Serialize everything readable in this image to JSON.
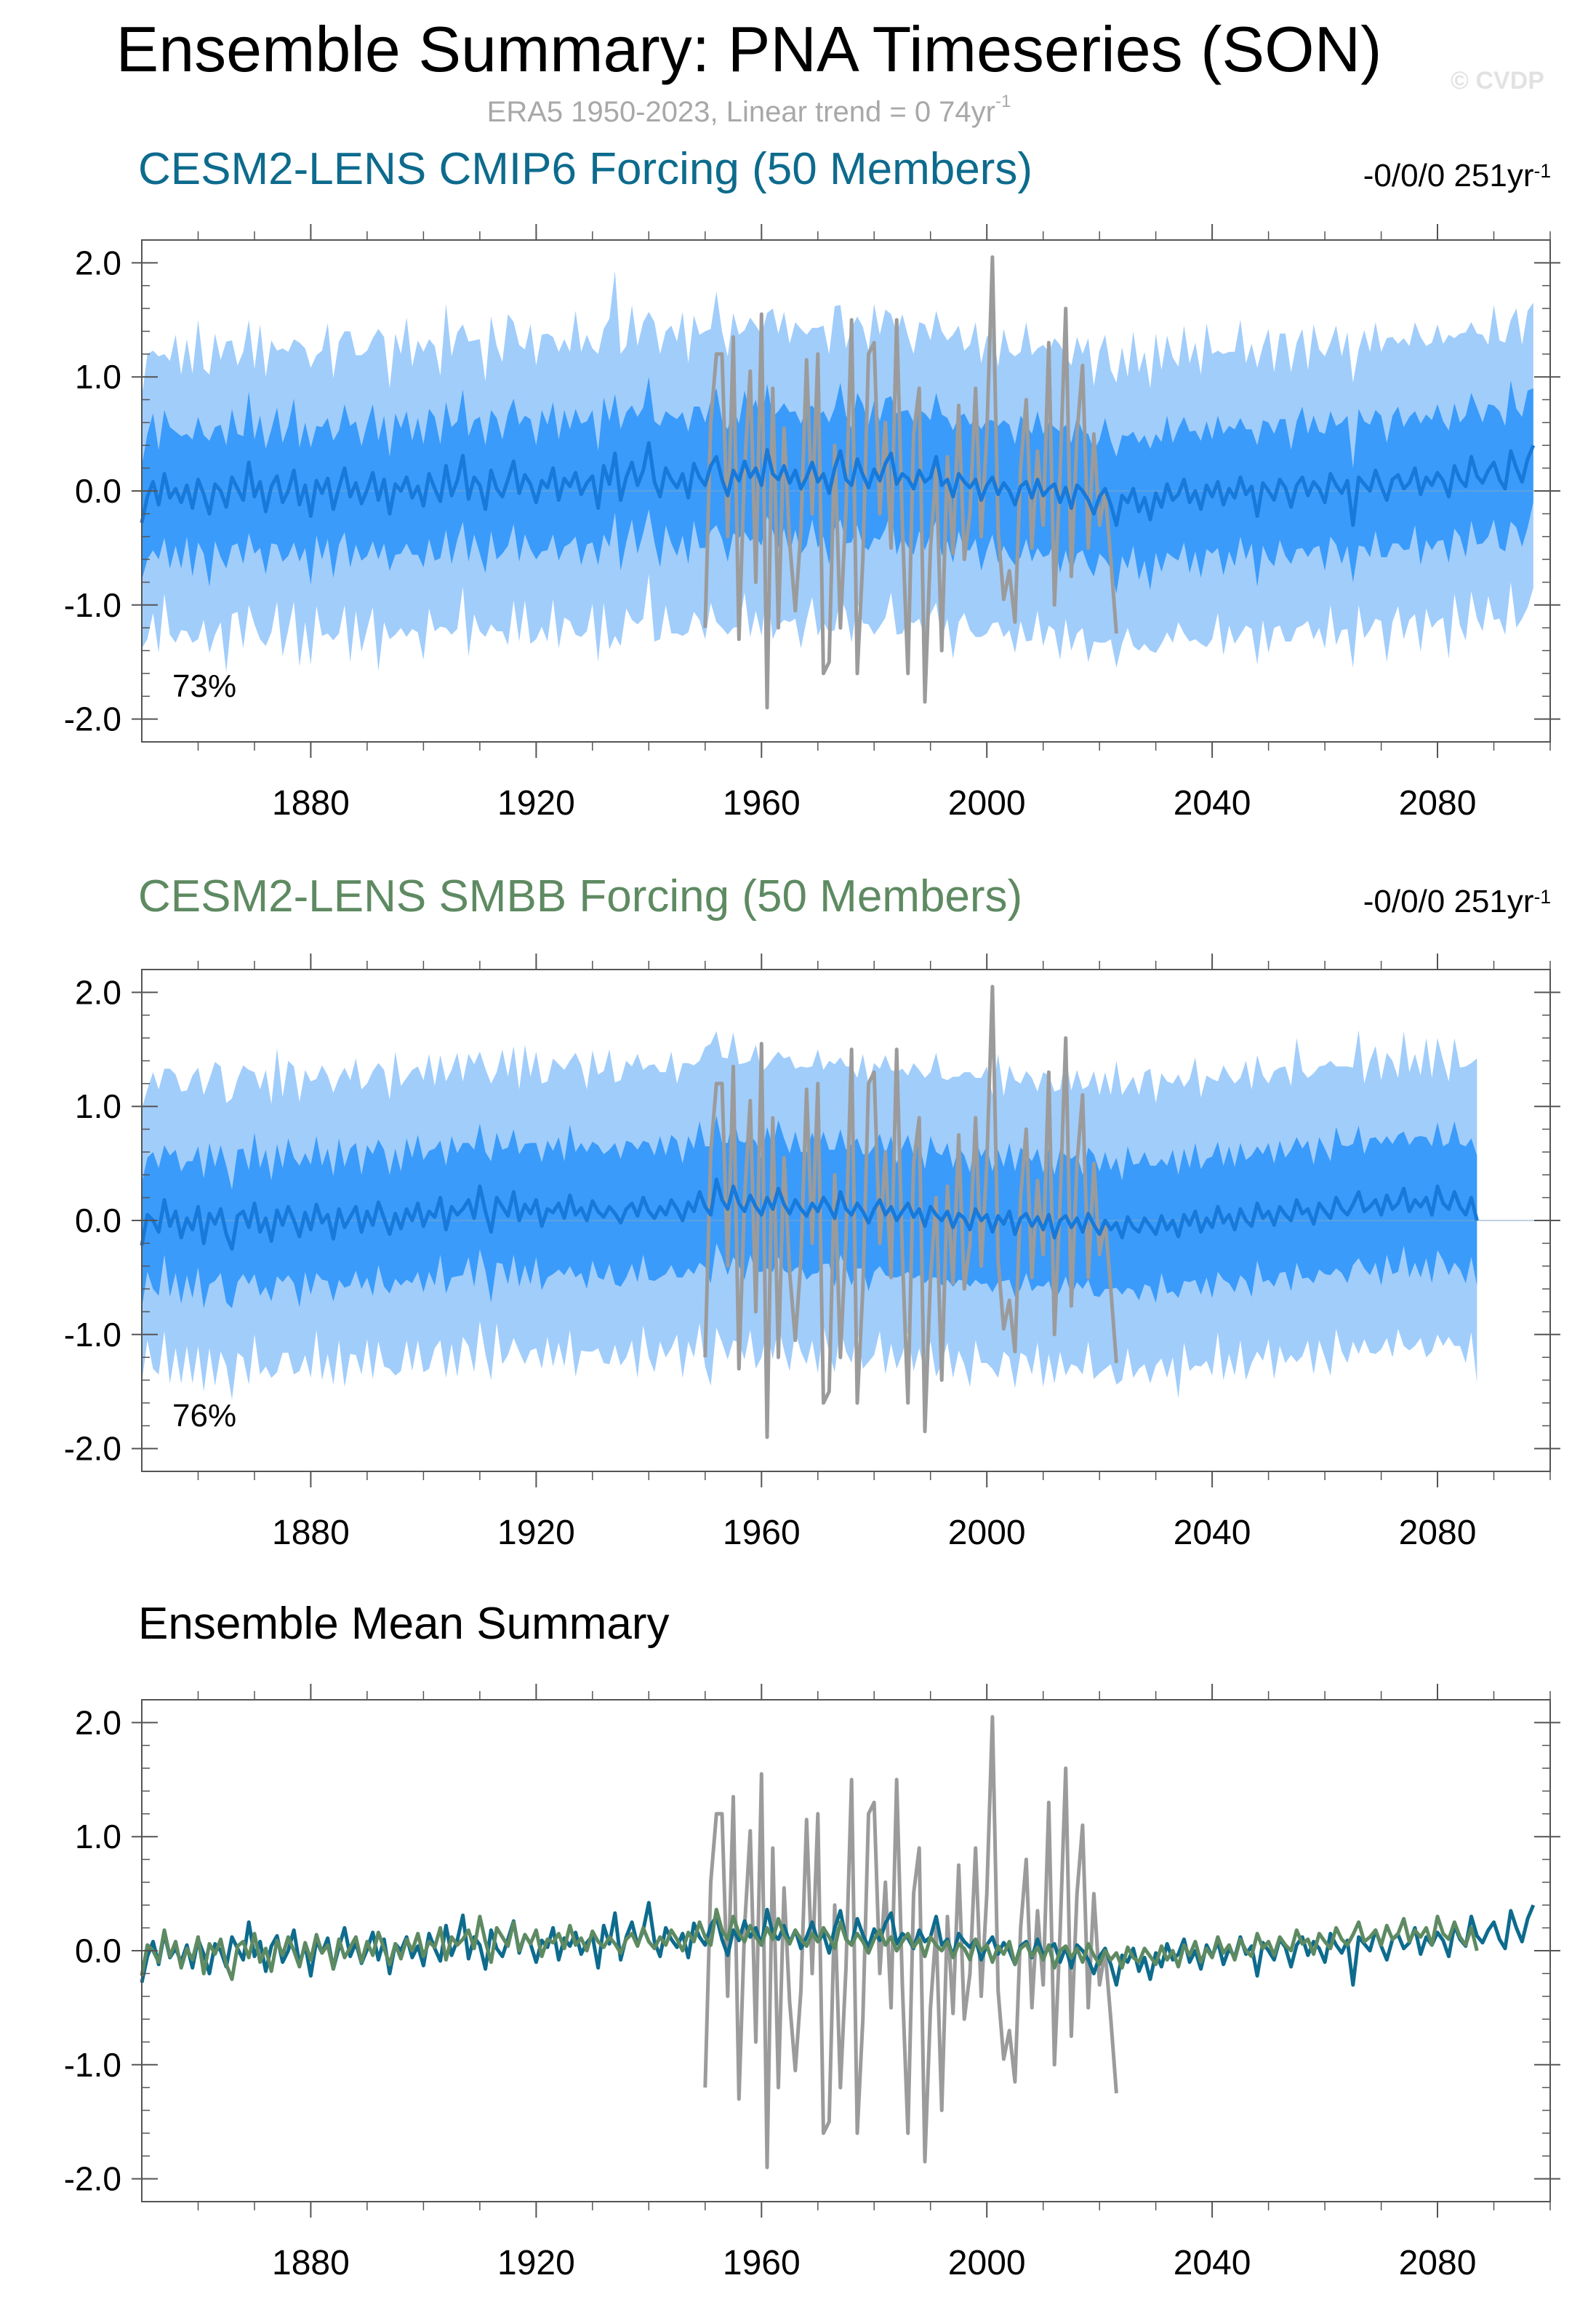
{
  "header": {
    "title": "Ensemble Summary: PNA Timeseries (SON)",
    "watermark": "© CVDP",
    "obs_label": "ERA5 1950-2023, Linear trend = 0 74yr",
    "obs_label_sup": "-1"
  },
  "colors": {
    "outer_band": "#a1cdfb",
    "inner_band": "#3a9bfa",
    "cmip6_mean": "#0d6b8d",
    "cmip6_mean_in_band": "#1779da",
    "smbb_mean": "#5e8a62",
    "smbb_mean_in_band": "#1779da",
    "obs": "#9b9b9b",
    "axis": "#555555"
  },
  "panels": [
    {
      "title": "CESM2-LENS CMIP6 Forcing (50 Members)",
      "trend": "-0/0/0 251yr",
      "trend_sup": "-1",
      "percent_label": "73%"
    },
    {
      "title": "CESM2-LENS SMBB Forcing (50 Members)",
      "trend": "-0/0/0 251yr",
      "trend_sup": "-1",
      "percent_label": "76%"
    },
    {
      "title": "Ensemble Mean Summary",
      "trend": "",
      "trend_sup": "",
      "percent_label": ""
    }
  ],
  "chart_data": {
    "type": "line",
    "x_range": [
      1850,
      2100
    ],
    "ylim": [
      -2.2,
      2.2
    ],
    "x_ticks": [
      1880,
      1920,
      1960,
      2000,
      2040,
      2080
    ],
    "y_ticks": [
      2.0,
      1.0,
      0.0,
      -1.0,
      -2.0
    ],
    "y_tick_labels": [
      "2.0",
      "1.0",
      "0.0",
      "-1.0",
      "-2.0"
    ],
    "years_start": 1850,
    "cmip6_mean": [
      -0.28,
      -0.05,
      0.08,
      -0.12,
      0.15,
      -0.06,
      0.02,
      -0.1,
      0.05,
      -0.15,
      0.1,
      -0.03,
      -0.2,
      0.06,
      0.0,
      -0.14,
      0.12,
      0.02,
      -0.08,
      0.25,
      -0.05,
      0.08,
      -0.18,
      0.04,
      0.13,
      -0.1,
      0.0,
      0.18,
      -0.12,
      0.05,
      -0.22,
      0.09,
      -0.02,
      0.11,
      -0.16,
      0.03,
      0.2,
      -0.05,
      0.07,
      -0.11,
      0.01,
      0.16,
      -0.08,
      0.1,
      -0.2,
      0.06,
      0.0,
      0.12,
      -0.06,
      0.04,
      -0.13,
      0.15,
      0.02,
      -0.09,
      0.22,
      -0.04,
      0.09,
      0.31,
      -0.07,
      0.12,
      0.05,
      -0.16,
      0.18,
      0.02,
      -0.05,
      0.1,
      0.26,
      -0.02,
      0.14,
      0.06,
      -0.1,
      0.09,
      0.03,
      0.2,
      -0.08,
      0.11,
      0.04,
      0.16,
      -0.03,
      0.07,
      0.13,
      -0.15,
      0.22,
      0.06,
      0.33,
      -0.08,
      0.12,
      0.25,
      0.05,
      0.18,
      0.42,
      0.08,
      -0.05,
      0.2,
      0.1,
      0.03,
      0.15,
      -0.06,
      0.24,
      0.12,
      0.05,
      0.22,
      0.3,
      0.1,
      -0.04,
      0.18,
      0.09,
      0.26,
      0.12,
      0.2,
      0.05,
      0.36,
      0.15,
      0.1,
      0.22,
      0.07,
      0.18,
      0.02,
      0.12,
      0.25,
      0.08,
      0.15,
      -0.02,
      0.2,
      0.35,
      0.1,
      0.05,
      0.28,
      0.14,
      0.03,
      0.19,
      0.09,
      0.24,
      0.33,
      0.06,
      0.15,
      0.11,
      0.02,
      0.18,
      0.08,
      0.12,
      0.3,
      0.05,
      0.1,
      -0.05,
      0.15,
      0.08,
      0.03,
      0.1,
      -0.08,
      0.05,
      0.12,
      -0.03,
      0.07,
      0.0,
      -0.12,
      0.04,
      0.08,
      -0.06,
      0.1,
      -0.04,
      0.02,
      0.06,
      -0.1,
      0.03,
      -0.15,
      0.05,
      0.0,
      -0.08,
      -0.2,
      -0.05,
      0.02,
      -0.12,
      -0.3,
      -0.04,
      -0.1,
      0.02,
      -0.18,
      -0.06,
      -0.25,
      -0.02,
      -0.14,
      0.06,
      -0.08,
      -0.03,
      0.1,
      -0.1,
      0.0,
      -0.16,
      0.05,
      -0.05,
      0.08,
      -0.12,
      0.02,
      -0.06,
      0.12,
      -0.03,
      0.04,
      -0.22,
      0.07,
      0.0,
      -0.08,
      0.1,
      0.03,
      -0.14,
      0.05,
      0.12,
      -0.04,
      0.08,
      0.02,
      -0.1,
      0.15,
      0.05,
      -0.02,
      0.09,
      -0.3,
      0.12,
      0.06,
      0.0,
      0.18,
      0.04,
      -0.08,
      0.1,
      0.14,
      0.02,
      0.07,
      0.2,
      -0.03,
      0.12,
      0.05,
      0.16,
      0.09,
      -0.05,
      0.22,
      0.1,
      0.04,
      0.3,
      0.13,
      0.07,
      0.18,
      0.25,
      0.1,
      0.02,
      0.35,
      0.2,
      0.08,
      0.28,
      0.4
    ],
    "smbb_mean": [
      -0.22,
      0.05,
      0.0,
      -0.1,
      0.18,
      -0.05,
      0.08,
      -0.15,
      0.02,
      -0.08,
      0.12,
      -0.2,
      0.06,
      -0.03,
      0.1,
      -0.12,
      -0.25,
      0.04,
      0.08,
      -0.06,
      0.15,
      -0.1,
      0.02,
      -0.18,
      0.09,
      -0.04,
      0.12,
      0.0,
      -0.14,
      0.07,
      -0.08,
      0.14,
      -0.02,
      0.05,
      -0.16,
      0.1,
      -0.06,
      0.03,
      0.12,
      -0.1,
      0.08,
      -0.04,
      0.16,
      0.02,
      -0.12,
      0.06,
      -0.07,
      0.1,
      0.0,
      0.15,
      -0.05,
      0.08,
      0.03,
      0.2,
      -0.08,
      0.12,
      0.05,
      0.1,
      0.18,
      0.02,
      0.3,
      0.08,
      -0.1,
      0.2,
      0.12,
      0.04,
      0.25,
      0.0,
      0.14,
      0.06,
      0.18,
      -0.05,
      0.1,
      0.07,
      0.15,
      0.02,
      0.22,
      0.05,
      0.11,
      0.0,
      0.17,
      0.08,
      0.03,
      0.12,
      0.06,
      -0.02,
      0.1,
      0.15,
      0.04,
      0.2,
      0.08,
      0.02,
      0.12,
      0.05,
      0.18,
      0.1,
      0.0,
      0.16,
      0.08,
      0.25,
      0.12,
      0.05,
      0.36,
      0.18,
      0.1,
      0.3,
      0.15,
      0.08,
      0.22,
      0.12,
      0.05,
      0.2,
      0.1,
      0.28,
      0.14,
      0.06,
      0.18,
      0.1,
      0.04,
      0.15,
      0.08,
      0.2,
      0.12,
      0.02,
      0.25,
      0.1,
      0.05,
      0.15,
      0.08,
      -0.02,
      0.1,
      0.18,
      0.05,
      0.12,
      0.0,
      0.08,
      0.15,
      0.03,
      0.1,
      -0.05,
      0.12,
      0.05,
      0.0,
      0.08,
      -0.06,
      0.06,
      0.02,
      -0.08,
      0.1,
      0.0,
      0.05,
      -0.1,
      0.04,
      -0.03,
      0.08,
      -0.12,
      0.02,
      0.06,
      -0.05,
      0.03,
      -0.08,
      0.05,
      -0.15,
      0.0,
      0.04,
      -0.06,
      0.02,
      -0.1,
      0.06,
      -0.04,
      -0.12,
      0.0,
      -0.08,
      -0.02,
      -0.15,
      0.03,
      -0.06,
      -0.1,
      0.02,
      -0.05,
      -0.12,
      0.04,
      -0.08,
      0.0,
      -0.14,
      0.05,
      -0.04,
      0.08,
      -0.1,
      0.02,
      -0.06,
      0.12,
      -0.02,
      0.05,
      -0.08,
      0.1,
      0.0,
      -0.05,
      0.15,
      0.02,
      0.08,
      -0.04,
      0.12,
      0.05,
      0.0,
      0.18,
      0.06,
      0.1,
      -0.03,
      0.15,
      0.08,
      0.02,
      0.2,
      0.1,
      0.05,
      0.14,
      0.25,
      0.08,
      0.12,
      0.18,
      0.05,
      0.22,
      0.1,
      0.15,
      0.28,
      0.08,
      0.18,
      0.12,
      0.2,
      0.05,
      0.3,
      0.15,
      0.1,
      0.25,
      0.12,
      0.05,
      0.2,
      0.0
    ],
    "cmip6_inner_half": [
      0.5,
      0.55,
      0.6,
      0.48,
      0.56,
      0.62,
      0.5,
      0.58,
      0.45,
      0.6,
      0.55,
      0.52,
      0.64,
      0.5,
      0.58,
      0.54,
      0.6,
      0.48,
      0.56,
      0.62,
      0.5,
      0.58,
      0.55,
      0.5,
      0.6,
      0.52,
      0.57,
      0.63,
      0.5,
      0.55,
      0.6,
      0.48,
      0.58,
      0.53,
      0.6,
      0.5,
      0.56,
      0.62,
      0.54,
      0.5,
      0.58,
      0.6,
      0.52,
      0.56,
      0.5,
      0.62,
      0.55,
      0.58,
      0.5,
      0.6,
      0.54,
      0.57,
      0.63,
      0.5,
      0.56,
      0.6,
      0.52,
      0.58,
      0.55,
      0.5,
      0.6,
      0.56,
      0.53,
      0.62,
      0.5,
      0.58,
      0.55,
      0.6,
      0.52,
      0.57,
      0.5,
      0.62,
      0.55,
      0.58,
      0.53,
      0.6,
      0.5,
      0.56,
      0.62,
      0.54,
      0.58,
      0.5,
      0.6,
      0.55,
      0.52,
      0.62,
      0.57,
      0.5,
      0.6,
      0.55,
      0.58,
      0.53,
      0.62,
      0.5,
      0.56,
      0.6,
      0.54,
      0.58,
      0.5,
      0.62,
      0.55,
      0.57,
      0.6,
      0.52,
      0.58,
      0.55,
      0.5,
      0.62,
      0.56,
      0.6,
      0.53,
      0.58,
      0.5,
      0.6,
      0.55,
      0.62,
      0.52,
      0.57,
      0.6,
      0.5,
      0.58,
      0.55,
      0.62,
      0.53,
      0.6,
      0.56,
      0.5,
      0.58,
      0.62,
      0.55,
      0.6,
      0.52,
      0.57,
      0.5,
      0.62,
      0.55,
      0.6,
      0.58,
      0.53,
      0.6,
      0.5,
      0.56,
      0.62,
      0.54,
      0.58,
      0.5,
      0.6,
      0.55,
      0.52,
      0.62,
      0.57,
      0.5,
      0.6,
      0.55,
      0.58,
      0.53,
      0.62,
      0.5,
      0.56,
      0.6,
      0.54,
      0.58,
      0.5,
      0.62,
      0.55,
      0.57,
      0.6,
      0.52,
      0.58,
      0.55,
      0.5,
      0.62,
      0.56,
      0.6,
      0.53,
      0.58,
      0.5,
      0.6,
      0.55,
      0.62,
      0.52,
      0.57,
      0.6,
      0.5,
      0.58,
      0.55,
      0.62,
      0.53,
      0.6,
      0.56,
      0.5,
      0.58,
      0.62,
      0.55,
      0.6,
      0.52,
      0.57,
      0.5,
      0.62,
      0.55,
      0.6,
      0.58,
      0.53,
      0.6,
      0.5,
      0.56,
      0.62,
      0.54,
      0.58,
      0.5,
      0.6,
      0.55,
      0.52,
      0.62,
      0.57,
      0.5,
      0.6,
      0.55,
      0.58,
      0.53,
      0.62,
      0.5,
      0.56,
      0.6,
      0.54,
      0.58,
      0.5,
      0.62,
      0.55,
      0.57,
      0.6,
      0.52,
      0.58,
      0.55,
      0.5,
      0.62,
      0.56,
      0.6,
      0.53,
      0.58,
      0.5,
      0.6,
      0.55,
      0.62,
      0.52,
      0.57,
      0.6,
      0.5,
      0.58,
      0.55,
      0.62,
      0.53
    ],
    "cmip6_outer_half": [
      1.1,
      1.25,
      1.15,
      1.3,
      1.05,
      1.2,
      1.35,
      1.12,
      1.28,
      1.18,
      1.4,
      1.1,
      1.22,
      1.32,
      1.15,
      1.45,
      1.2,
      1.08,
      1.3,
      1.25,
      1.12,
      1.38,
      1.18,
      1.28,
      1.1,
      1.35,
      1.22,
      1.15,
      1.42,
      1.2,
      1.3,
      1.1,
      1.25,
      1.36,
      1.15,
      1.28,
      1.2,
      1.45,
      1.12,
      1.3,
      1.22,
      1.18,
      1.5,
      1.25,
      1.1,
      1.32,
      1.2,
      1.4,
      1.15,
      1.28,
      1.35,
      1.18,
      1.25,
      1.1,
      1.42,
      1.22,
      1.3,
      1.15,
      1.38,
      1.2,
      1.28,
      1.12,
      1.35,
      1.25,
      1.18,
      1.45,
      1.22,
      1.3,
      1.1,
      1.4,
      1.2,
      1.28,
      1.35,
      1.15,
      1.3,
      1.22,
      1.18,
      1.42,
      1.25,
      1.3,
      1.12,
      1.35,
      1.2,
      1.45,
      1.6,
      1.28,
      1.15,
      1.38,
      1.22,
      1.3,
      1.15,
      1.4,
      1.25,
      1.2,
      1.35,
      1.28,
      1.42,
      1.18,
      1.3,
      1.25,
      1.35,
      1.2,
      1.45,
      1.3,
      1.22,
      1.38,
      1.28,
      1.15,
      1.4,
      1.25,
      1.32,
      1.2,
      1.45,
      1.28,
      1.35,
      1.22,
      1.3,
      1.4,
      1.25,
      1.18,
      1.35,
      1.3,
      1.22,
      1.42,
      1.28,
      1.15,
      1.38,
      1.25,
      1.3,
      1.2,
      1.45,
      1.28,
      1.35,
      1.22,
      1.32,
      1.4,
      1.25,
      1.18,
      1.3,
      1.38,
      1.2,
      1.28,
      1.35,
      1.22,
      1.42,
      1.3,
      1.15,
      1.25,
      1.38,
      1.2,
      1.3,
      1.28,
      1.12,
      1.35,
      1.22,
      1.3,
      1.18,
      1.4,
      1.25,
      1.15,
      1.32,
      1.2,
      1.28,
      1.38,
      1.15,
      1.25,
      1.3,
      1.2,
      1.42,
      1.12,
      1.28,
      1.35,
      1.18,
      1.25,
      1.3,
      1.1,
      1.38,
      1.22,
      1.28,
      1.15,
      1.4,
      1.2,
      1.3,
      1.25,
      1.12,
      1.35,
      1.22,
      1.3,
      1.18,
      1.42,
      1.25,
      1.15,
      1.32,
      1.2,
      1.28,
      1.38,
      1.15,
      1.25,
      1.3,
      1.2,
      1.42,
      1.12,
      1.28,
      1.35,
      1.18,
      1.25,
      1.3,
      1.1,
      1.38,
      1.22,
      1.28,
      1.15,
      1.4,
      1.2,
      1.3,
      1.25,
      1.12,
      1.35,
      1.22,
      1.3,
      1.18,
      1.42,
      1.25,
      1.15,
      1.32,
      1.2,
      1.28,
      1.38,
      1.15,
      1.25,
      1.3,
      1.2,
      1.42,
      1.12,
      1.28,
      1.35,
      1.18,
      1.25,
      1.3,
      1.1,
      1.38,
      1.22,
      1.28,
      1.15,
      1.4,
      1.2,
      1.3,
      1.25,
      1.12
    ],
    "smbb_inner_half": [
      0.55,
      0.5,
      0.6,
      0.56,
      0.48,
      0.62,
      0.54,
      0.58,
      0.5,
      0.6,
      0.53,
      0.57,
      0.62,
      0.5,
      0.56,
      0.6,
      0.52,
      0.58,
      0.55,
      0.5,
      0.62,
      0.56,
      0.6,
      0.53,
      0.58,
      0.5,
      0.6,
      0.55,
      0.62,
      0.52,
      0.57,
      0.6,
      0.5,
      0.58,
      0.55,
      0.62,
      0.53,
      0.6,
      0.56,
      0.5,
      0.58,
      0.62,
      0.55,
      0.6,
      0.52,
      0.57,
      0.5,
      0.62,
      0.55,
      0.6,
      0.58,
      0.53,
      0.6,
      0.5,
      0.56,
      0.62,
      0.54,
      0.58,
      0.5,
      0.6,
      0.55,
      0.52,
      0.62,
      0.57,
      0.5,
      0.6,
      0.55,
      0.58,
      0.53,
      0.62,
      0.5,
      0.56,
      0.6,
      0.54,
      0.58,
      0.5,
      0.62,
      0.55,
      0.57,
      0.6,
      0.52,
      0.58,
      0.55,
      0.5,
      0.62,
      0.56,
      0.6,
      0.53,
      0.58,
      0.5,
      0.6,
      0.55,
      0.62,
      0.52,
      0.57,
      0.6,
      0.5,
      0.58,
      0.55,
      0.62,
      0.53,
      0.6,
      0.56,
      0.5,
      0.58,
      0.62,
      0.55,
      0.6,
      0.52,
      0.57,
      0.5,
      0.62,
      0.55,
      0.6,
      0.58,
      0.53,
      0.6,
      0.5,
      0.56,
      0.62,
      0.54,
      0.58,
      0.5,
      0.6,
      0.55,
      0.52,
      0.62,
      0.57,
      0.5,
      0.6,
      0.55,
      0.58,
      0.53,
      0.62,
      0.5,
      0.56,
      0.6,
      0.54,
      0.58,
      0.5,
      0.62,
      0.55,
      0.57,
      0.6,
      0.52,
      0.58,
      0.55,
      0.5,
      0.62,
      0.56,
      0.6,
      0.53,
      0.58,
      0.5,
      0.6,
      0.55,
      0.62,
      0.52,
      0.57,
      0.6,
      0.5,
      0.58,
      0.55,
      0.62,
      0.53,
      0.6,
      0.56,
      0.5,
      0.58,
      0.62,
      0.55,
      0.6,
      0.52,
      0.57,
      0.5,
      0.62,
      0.55,
      0.6,
      0.58,
      0.53,
      0.6,
      0.5,
      0.56,
      0.62,
      0.54,
      0.58,
      0.5,
      0.6,
      0.55,
      0.52,
      0.62,
      0.57,
      0.5,
      0.6,
      0.55,
      0.58,
      0.53,
      0.62,
      0.5,
      0.56,
      0.6,
      0.54,
      0.58,
      0.5,
      0.62,
      0.55,
      0.57,
      0.6,
      0.52,
      0.58,
      0.55,
      0.5,
      0.62,
      0.56,
      0.6,
      0.53,
      0.58,
      0.5,
      0.6,
      0.55,
      0.62,
      0.52,
      0.57,
      0.6,
      0.5,
      0.58,
      0.55,
      0.62,
      0.53,
      0.6,
      0.56,
      0.5,
      0.58,
      0.62,
      0.55,
      0.6,
      0.52,
      0.57,
      0.5,
      0.62,
      0.55,
      0.6,
      0.58,
      0.53,
      0.6,
      0.5
    ],
    "smbb_outer_half": [
      1.2,
      1.1,
      1.3,
      1.25,
      1.15,
      1.38,
      1.2,
      1.28,
      1.12,
      1.35,
      1.22,
      1.3,
      1.18,
      1.42,
      1.25,
      1.15,
      1.32,
      1.2,
      1.28,
      1.38,
      1.15,
      1.25,
      1.3,
      1.2,
      1.42,
      1.12,
      1.28,
      1.35,
      1.18,
      1.25,
      1.3,
      1.1,
      1.38,
      1.22,
      1.28,
      1.15,
      1.4,
      1.2,
      1.3,
      1.25,
      1.12,
      1.35,
      1.22,
      1.3,
      1.18,
      1.42,
      1.25,
      1.15,
      1.32,
      1.2,
      1.28,
      1.38,
      1.15,
      1.25,
      1.3,
      1.2,
      1.42,
      1.12,
      1.28,
      1.35,
      1.18,
      1.25,
      1.3,
      1.1,
      1.38,
      1.22,
      1.28,
      1.15,
      1.4,
      1.2,
      1.3,
      1.25,
      1.12,
      1.35,
      1.22,
      1.3,
      1.18,
      1.42,
      1.25,
      1.15,
      1.32,
      1.2,
      1.28,
      1.38,
      1.15,
      1.25,
      1.3,
      1.2,
      1.42,
      1.12,
      1.28,
      1.35,
      1.18,
      1.25,
      1.3,
      1.1,
      1.38,
      1.22,
      1.28,
      1.15,
      1.4,
      1.5,
      1.3,
      1.25,
      1.32,
      1.35,
      1.22,
      1.3,
      1.18,
      1.42,
      1.25,
      1.15,
      1.32,
      1.2,
      1.28,
      1.38,
      1.15,
      1.25,
      1.3,
      1.2,
      1.42,
      1.12,
      1.28,
      1.35,
      1.18,
      1.25,
      1.3,
      1.1,
      1.38,
      1.22,
      1.28,
      1.15,
      1.4,
      1.2,
      1.3,
      1.25,
      1.12,
      1.35,
      1.22,
      1.3,
      1.18,
      1.42,
      1.25,
      1.15,
      1.32,
      1.2,
      1.28,
      1.38,
      1.15,
      1.25,
      1.3,
      1.2,
      1.42,
      1.12,
      1.28,
      1.35,
      1.18,
      1.25,
      1.3,
      1.1,
      1.38,
      1.22,
      1.28,
      1.15,
      1.4,
      1.2,
      1.3,
      1.25,
      1.12,
      1.35,
      1.22,
      1.3,
      1.18,
      1.42,
      1.25,
      1.15,
      1.32,
      1.2,
      1.28,
      1.38,
      1.15,
      1.25,
      1.3,
      1.2,
      1.42,
      1.12,
      1.28,
      1.35,
      1.18,
      1.25,
      1.3,
      1.1,
      1.38,
      1.22,
      1.28,
      1.15,
      1.4,
      1.2,
      1.3,
      1.25,
      1.12,
      1.35,
      1.22,
      1.3,
      1.18,
      1.42,
      1.25,
      1.15,
      1.32,
      1.2,
      1.28,
      1.38,
      1.15,
      1.25,
      1.3,
      1.2,
      1.42,
      1.12,
      1.28,
      1.35,
      1.18,
      1.25,
      1.3,
      1.1,
      1.38,
      1.22,
      1.28,
      1.15,
      1.4,
      1.2,
      1.3,
      1.25,
      1.12,
      1.35,
      1.22,
      1.3,
      1.18,
      1.42,
      1.25,
      1.15,
      1.32,
      1.2,
      1.28,
      1.38,
      1.15,
      1.25,
      1.3,
      1.2,
      1.42,
      1.12,
      1.28,
      1.35,
      1.18
    ],
    "obs_start": 1950,
    "obs": [
      -1.2,
      0.6,
      1.2,
      1.2,
      -0.4,
      1.35,
      -1.3,
      0.2,
      1.05,
      -0.8,
      1.55,
      -1.9,
      0.9,
      -1.2,
      0.55,
      -0.45,
      -1.05,
      -0.35,
      1.15,
      -0.2,
      1.2,
      -1.6,
      -1.5,
      0.4,
      -1.2,
      -0.15,
      1.5,
      -1.6,
      -0.6,
      1.2,
      1.3,
      -0.2,
      0.6,
      -0.5,
      1.5,
      -0.3,
      -1.6,
      0.5,
      0.9,
      -1.85,
      -0.5,
      0.2,
      -1.4,
      0.3,
      -0.55,
      0.75,
      -0.6,
      -0.2,
      0.9,
      -0.4,
      0.5,
      2.05,
      -0.35,
      -0.95,
      -0.7,
      -1.15,
      0.2,
      0.8,
      -0.5,
      0.35,
      -0.3,
      1.3,
      -1.0,
      0.15,
      1.6,
      -0.75,
      0.5,
      1.1,
      -0.5,
      0.5,
      -0.3,
      0.0,
      -0.6,
      -1.25
    ]
  }
}
